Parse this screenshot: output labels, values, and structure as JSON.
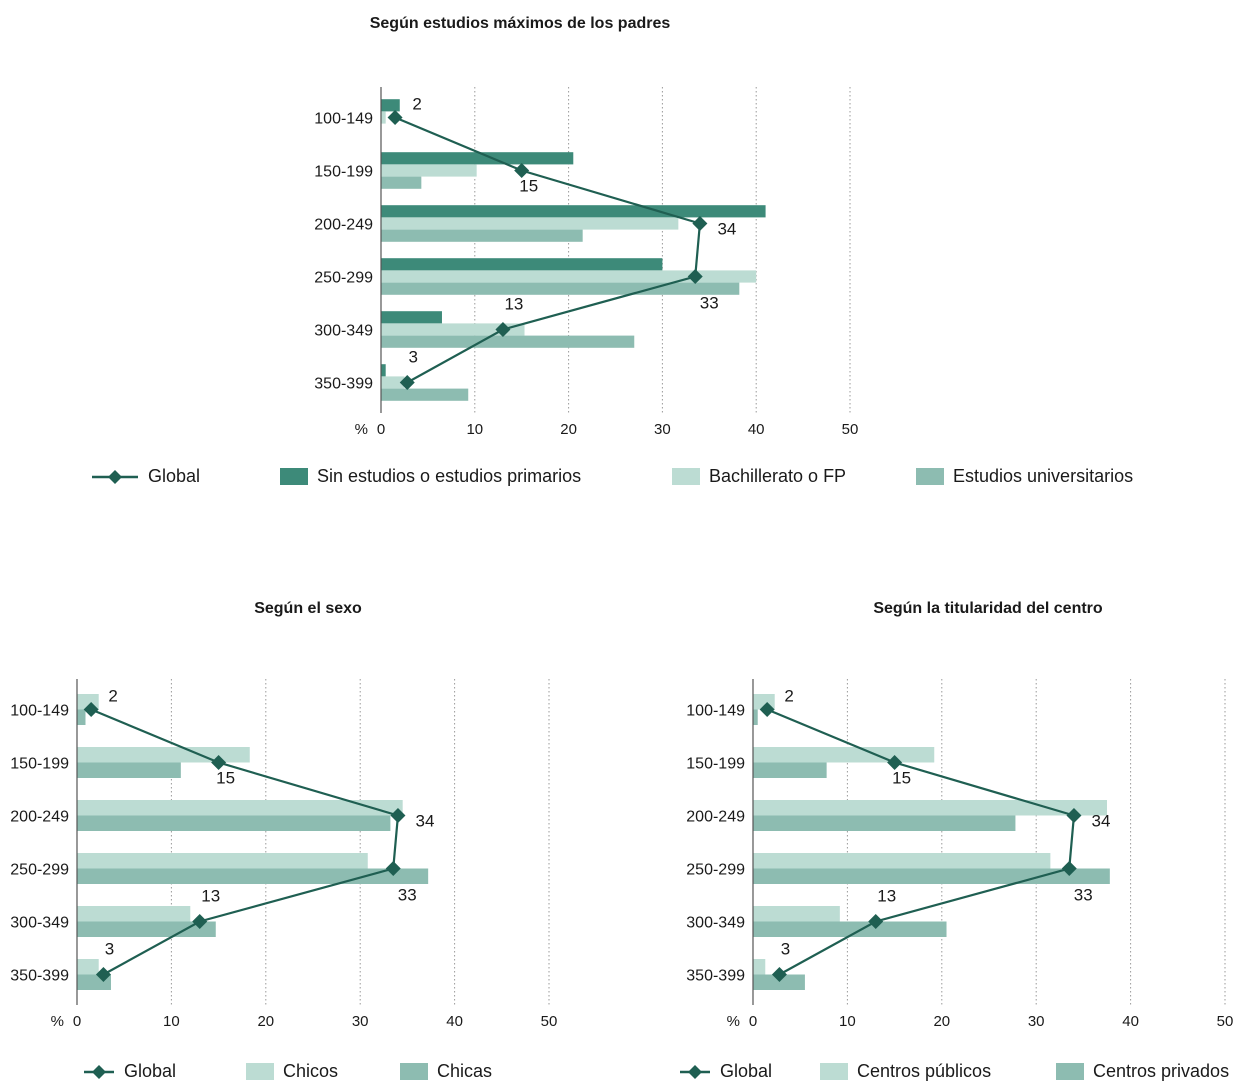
{
  "colors": {
    "dark": "#3d8a79",
    "light": "#bcdcd3",
    "mid": "#8dbcb1",
    "line": "#1f5f52"
  },
  "chart_data": [
    {
      "type": "bar",
      "orientation": "horizontal",
      "title": "Según estudios máximos de los padres",
      "unit_label": "%",
      "categories": [
        "100-149",
        "150-199",
        "200-249",
        "250-299",
        "300-349",
        "350-399"
      ],
      "xlim": [
        0,
        50
      ],
      "xticks": [
        0,
        10,
        20,
        30,
        40,
        50
      ],
      "grid": "vertical dotted",
      "legend_position": "bottom",
      "series": [
        {
          "name": "Sin estudios o estudios primarios",
          "color": "#3d8a79",
          "values": [
            2,
            20.5,
            41,
            30,
            6.5,
            0.5
          ]
        },
        {
          "name": "Bachillerato o FP",
          "color": "#bcdcd3",
          "values": [
            0.5,
            10.2,
            31.7,
            40,
            15.3,
            2.5
          ]
        },
        {
          "name": "Estudios universitarios",
          "color": "#8dbcb1",
          "values": [
            0,
            4.3,
            21.5,
            38.2,
            27,
            9.3
          ]
        }
      ],
      "line_series": {
        "name": "Global",
        "values": [
          1.5,
          15,
          34,
          33.5,
          13,
          2.8
        ],
        "labels": [
          "2",
          "15",
          "34",
          "33",
          "13",
          "3"
        ]
      }
    },
    {
      "type": "bar",
      "orientation": "horizontal",
      "title": "Según el sexo",
      "unit_label": "%",
      "categories": [
        "100-149",
        "150-199",
        "200-249",
        "250-299",
        "300-349",
        "350-399"
      ],
      "xlim": [
        0,
        50
      ],
      "xticks": [
        0,
        10,
        20,
        30,
        40,
        50
      ],
      "grid": "vertical dotted",
      "legend_position": "bottom",
      "series": [
        {
          "name": "Chicos",
          "color": "#bcdcd3",
          "values": [
            2.3,
            18.3,
            34.5,
            30.8,
            12,
            2.3
          ]
        },
        {
          "name": "Chicas",
          "color": "#8dbcb1",
          "values": [
            0.9,
            11,
            33.2,
            37.2,
            14.7,
            3.6
          ]
        }
      ],
      "line_series": {
        "name": "Global",
        "values": [
          1.5,
          15,
          34,
          33.5,
          13,
          2.8
        ],
        "labels": [
          "2",
          "15",
          "34",
          "33",
          "13",
          "3"
        ]
      }
    },
    {
      "type": "bar",
      "orientation": "horizontal",
      "title": "Según la titularidad del centro",
      "unit_label": "%",
      "categories": [
        "100-149",
        "150-199",
        "200-249",
        "250-299",
        "300-349",
        "350-399"
      ],
      "xlim": [
        0,
        50
      ],
      "xticks": [
        0,
        10,
        20,
        30,
        40,
        50
      ],
      "grid": "vertical dotted",
      "legend_position": "bottom",
      "series": [
        {
          "name": "Centros públicos",
          "color": "#bcdcd3",
          "values": [
            2.3,
            19.2,
            37.5,
            31.5,
            9.2,
            1.3
          ]
        },
        {
          "name": "Centros privados",
          "color": "#8dbcb1",
          "values": [
            0.5,
            7.8,
            27.8,
            37.8,
            20.5,
            5.5
          ]
        }
      ],
      "line_series": {
        "name": "Global",
        "values": [
          1.5,
          15,
          34,
          33.5,
          13,
          2.8
        ],
        "labels": [
          "2",
          "15",
          "34",
          "33",
          "13",
          "3"
        ]
      }
    }
  ]
}
